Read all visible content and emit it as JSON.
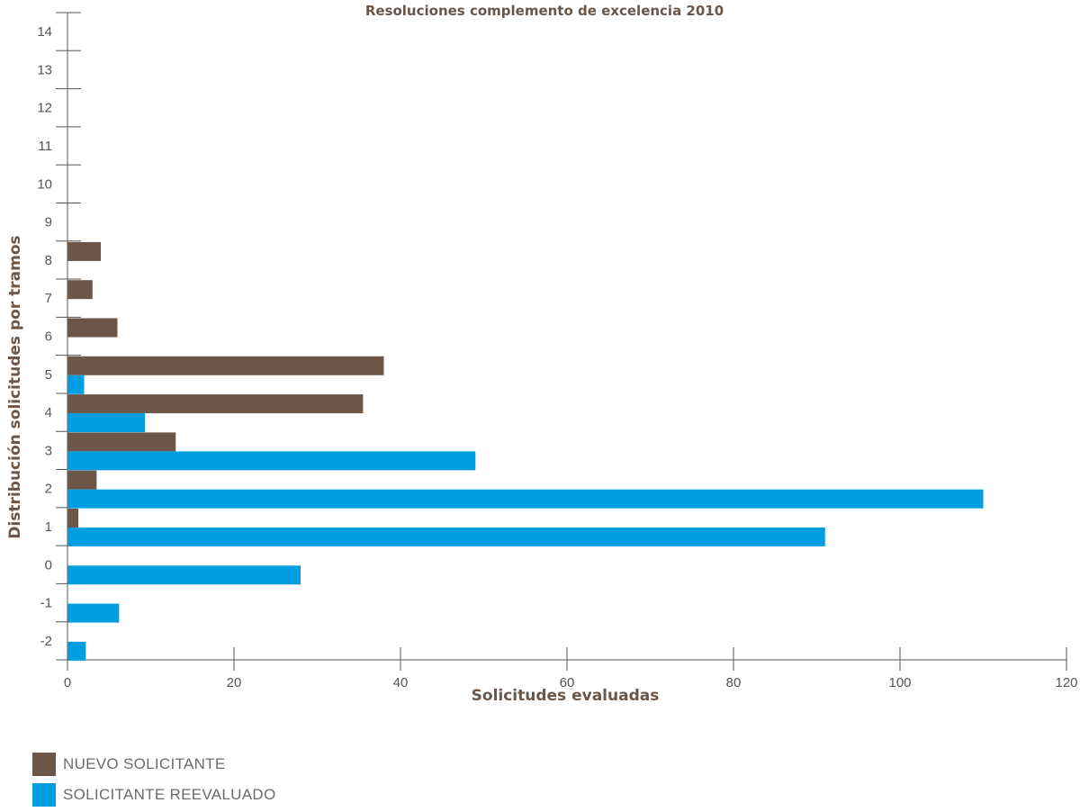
{
  "chart_data": {
    "type": "bar",
    "orientation": "horizontal",
    "title": "Resoluciones complemento de excelencia 2010",
    "xlabel": "Solicitudes evaluadas",
    "ylabel": "Distribución solicitudes por tramos",
    "xlim": [
      0,
      120
    ],
    "x_ticks": [
      "0",
      "20",
      "40",
      "60",
      "80",
      "100",
      "120"
    ],
    "categories": [
      "14",
      "13",
      "12",
      "11",
      "10",
      "9",
      "8",
      "7",
      "6",
      "5",
      "4",
      "3",
      "2",
      "1",
      "0",
      "-1",
      "-2"
    ],
    "series": [
      {
        "name": "NUEVO SOLICITANTE",
        "color": "#6b5647",
        "values": [
          0,
          0,
          0,
          0,
          0,
          0,
          4,
          3,
          6,
          38,
          35.5,
          13,
          3.5,
          1.3,
          0,
          0,
          0
        ]
      },
      {
        "name": "SOLICITANTE REEVALUADO",
        "color": "#009ee0",
        "values": [
          0,
          0,
          0,
          0,
          0,
          0,
          0,
          0,
          0,
          2,
          9.3,
          49,
          110,
          91,
          28,
          6.2,
          2.2
        ]
      }
    ],
    "legend_position": "bottom-left",
    "grid": false
  }
}
